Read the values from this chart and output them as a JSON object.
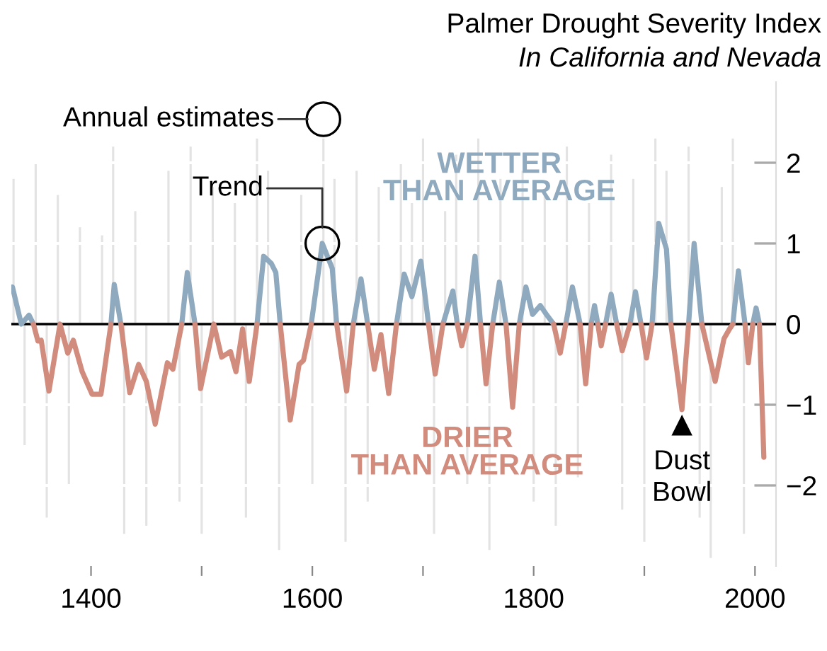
{
  "chart_data": {
    "type": "line",
    "title": "Palmer Drought Severity Index",
    "subtitle": "In California and Nevada",
    "x": [
      1329,
      1337,
      1344,
      1348,
      1352,
      1355,
      1362,
      1372,
      1379,
      1384,
      1392,
      1401,
      1409,
      1418,
      1421,
      1427,
      1435,
      1443,
      1450,
      1458,
      1469,
      1474,
      1482,
      1487,
      1494,
      1499,
      1511,
      1518,
      1526,
      1531,
      1537,
      1543,
      1550,
      1556,
      1563,
      1567,
      1571,
      1580,
      1588,
      1592,
      1599,
      1609,
      1618,
      1622,
      1631,
      1637,
      1644,
      1650,
      1656,
      1662,
      1669,
      1676,
      1683,
      1690,
      1698,
      1705,
      1711,
      1718,
      1727,
      1731,
      1735,
      1740,
      1747,
      1752,
      1757,
      1763,
      1769,
      1775,
      1781,
      1787,
      1793,
      1799,
      1806,
      1812,
      1818,
      1824,
      1829,
      1835,
      1842,
      1847,
      1852,
      1855,
      1858,
      1861,
      1865,
      1870,
      1875,
      1880,
      1887,
      1892,
      1897,
      1902,
      1907,
      1913,
      1920,
      1924,
      1934,
      1940,
      1945,
      1952,
      1964,
      1972,
      1977,
      1980,
      1985,
      1991,
      1994,
      1998,
      2001,
      2004,
      2008
    ],
    "series": [
      {
        "type": "bar",
        "color": "#e3e3e3",
        "x": [
          1330,
          1340,
          1350,
          1360,
          1370,
          1380,
          1390,
          1400,
          1410,
          1420,
          1430,
          1440,
          1450,
          1460,
          1470,
          1480,
          1490,
          1500,
          1510,
          1520,
          1530,
          1540,
          1550,
          1560,
          1570,
          1580,
          1590,
          1600,
          1610,
          1620,
          1630,
          1640,
          1650,
          1660,
          1670,
          1680,
          1690,
          1700,
          1710,
          1720,
          1730,
          1740,
          1750,
          1760,
          1770,
          1780,
          1790,
          1800,
          1810,
          1820,
          1830,
          1840,
          1850,
          1860,
          1870,
          1880,
          1890,
          1900,
          1910,
          1920,
          1930,
          1940,
          1950,
          1960,
          1970,
          1980,
          1990
        ],
        "values": [
          1.8,
          -1.5,
          2.0,
          -2.4,
          1.6,
          -2.0,
          1.2,
          null,
          1.1,
          2.2,
          -2.6,
          1.4,
          -2.5,
          null,
          1.9,
          -2.2,
          2.2,
          -2.6,
          1.7,
          null,
          1.5,
          -2.4,
          2.3,
          1.9,
          -2.8,
          null,
          1.6,
          -2.0,
          2.3,
          1.8,
          -2.7,
          1.9,
          -2.2,
          1.7,
          null,
          2.0,
          1.5,
          2.3,
          -2.6,
          1.4,
          2.1,
          -2.0,
          2.3,
          -2.8,
          1.8,
          null,
          1.9,
          -2.2,
          1.6,
          -2.5,
          2.2,
          -1.9,
          1.5,
          null,
          2.1,
          -2.3,
          1.8,
          -2.7,
          2.3,
          1.9,
          null,
          2.2,
          -2.4,
          -2.9,
          1.7,
          2.3,
          -2.6
        ]
      },
      {
        "color": "#8faabf",
        "values": [
          0.46,
          0,
          0.11,
          0,
          null,
          null,
          null,
          null,
          null,
          null,
          null,
          null,
          null,
          0,
          0.49,
          0,
          null,
          null,
          null,
          null,
          null,
          null,
          0,
          0.64,
          0,
          null,
          null,
          null,
          null,
          null,
          null,
          null,
          0,
          0.84,
          0.75,
          0.64,
          0,
          null,
          null,
          null,
          0,
          1.0,
          0.69,
          0,
          null,
          0,
          0.56,
          0,
          null,
          null,
          null,
          0,
          0.62,
          0.34,
          0.78,
          0,
          null,
          0,
          0.41,
          0,
          null,
          0,
          0.84,
          0,
          null,
          0,
          0.52,
          0,
          null,
          0,
          0.46,
          0.12,
          0.23,
          0.11,
          0,
          null,
          0,
          0.46,
          0,
          null,
          0,
          0.23,
          0,
          null,
          0,
          0.37,
          0,
          null,
          0,
          0.4,
          0,
          null,
          0,
          1.25,
          0.93,
          0,
          null,
          0,
          1.0,
          0,
          null,
          null,
          null,
          0,
          0.66,
          0,
          null,
          0,
          0.2,
          0,
          null
        ]
      },
      {
        "color": "#d28c7e",
        "values": [
          null,
          null,
          null,
          0,
          -0.21,
          -0.2,
          -0.83,
          0,
          -0.36,
          -0.2,
          -0.59,
          -0.87,
          -0.87,
          0,
          null,
          0,
          -0.85,
          -0.5,
          -0.71,
          -1.24,
          -0.48,
          -0.56,
          0,
          null,
          0,
          -0.8,
          0,
          -0.41,
          -0.34,
          -0.59,
          -0.06,
          -0.71,
          0,
          null,
          null,
          null,
          0,
          -1.19,
          -0.5,
          -0.45,
          0,
          null,
          null,
          0,
          -0.83,
          0,
          null,
          0,
          -0.56,
          -0.13,
          -0.86,
          0,
          null,
          null,
          null,
          0,
          -0.62,
          0,
          null,
          0,
          -0.27,
          0,
          null,
          0,
          -0.74,
          0,
          null,
          0,
          -1.03,
          0,
          null,
          null,
          null,
          null,
          0,
          -0.36,
          0,
          null,
          0,
          -0.74,
          0,
          null,
          0,
          -0.27,
          0,
          null,
          0,
          -0.33,
          0,
          null,
          0,
          -0.42,
          0,
          null,
          null,
          0,
          -1.06,
          0,
          null,
          0,
          -0.71,
          -0.18,
          -0.06,
          0,
          null,
          0,
          -0.48,
          0,
          null,
          0,
          -1.65
        ]
      }
    ],
    "xlim": [
      1328,
      2019
    ],
    "ylim": [
      -3,
      3
    ],
    "xticks": [
      1400,
      {
        "value": 1500,
        "label": null
      },
      1600,
      {
        "value": 1700,
        "label": null
      },
      1800,
      {
        "value": 1900,
        "label": null
      },
      2000
    ],
    "yticks": [
      2,
      1,
      0,
      {
        "value": -1,
        "label": "−1"
      },
      {
        "value": -2,
        "label": "−2"
      }
    ],
    "grid": "y",
    "ref_lines": [
      {
        "axis": "y",
        "value": 0,
        "color": "#000000"
      }
    ],
    "annotations": [
      {
        "text": "Annual estimates",
        "x": 1610,
        "y": 2.54
      },
      {
        "text": "Trend",
        "x": 1609,
        "y": 1.0
      },
      {
        "text": "Dust\nBowl",
        "x": 1934,
        "y": -1.26
      },
      {
        "text": "WETTER\nTHAN AVERAGE",
        "x": 1769,
        "y": 1.8
      },
      {
        "text": "DRIER\nTHAN AVERAGE",
        "x": 1740,
        "y": -1.6
      }
    ]
  }
}
